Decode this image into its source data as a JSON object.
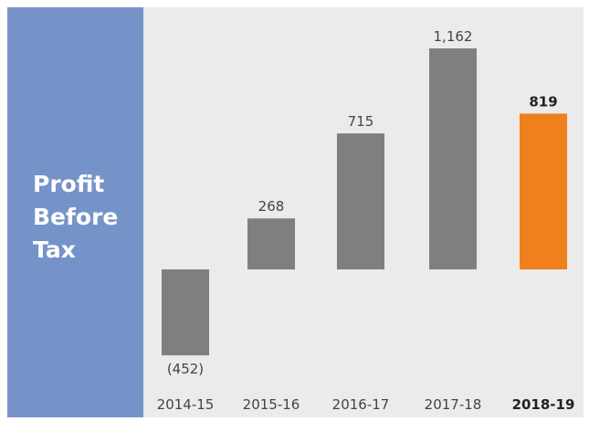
{
  "chart_data": {
    "type": "bar",
    "title_lines": [
      "Profit",
      "Before",
      "Tax"
    ],
    "categories": [
      "2014-15",
      "2015-16",
      "2016-17",
      "2017-18",
      "2018-19"
    ],
    "values": [
      -452,
      268,
      715,
      1162,
      819
    ],
    "value_labels": [
      "(452)",
      "268",
      "715",
      "1,162",
      "819"
    ],
    "highlight_index": 4,
    "colors": {
      "bar": "#7f7f7f",
      "highlight": "#f07f1d",
      "side_panel": "#7693c9",
      "background": "#ebebeb"
    },
    "ylim": [
      -452,
      1162
    ],
    "grid": false,
    "legend": "none"
  }
}
